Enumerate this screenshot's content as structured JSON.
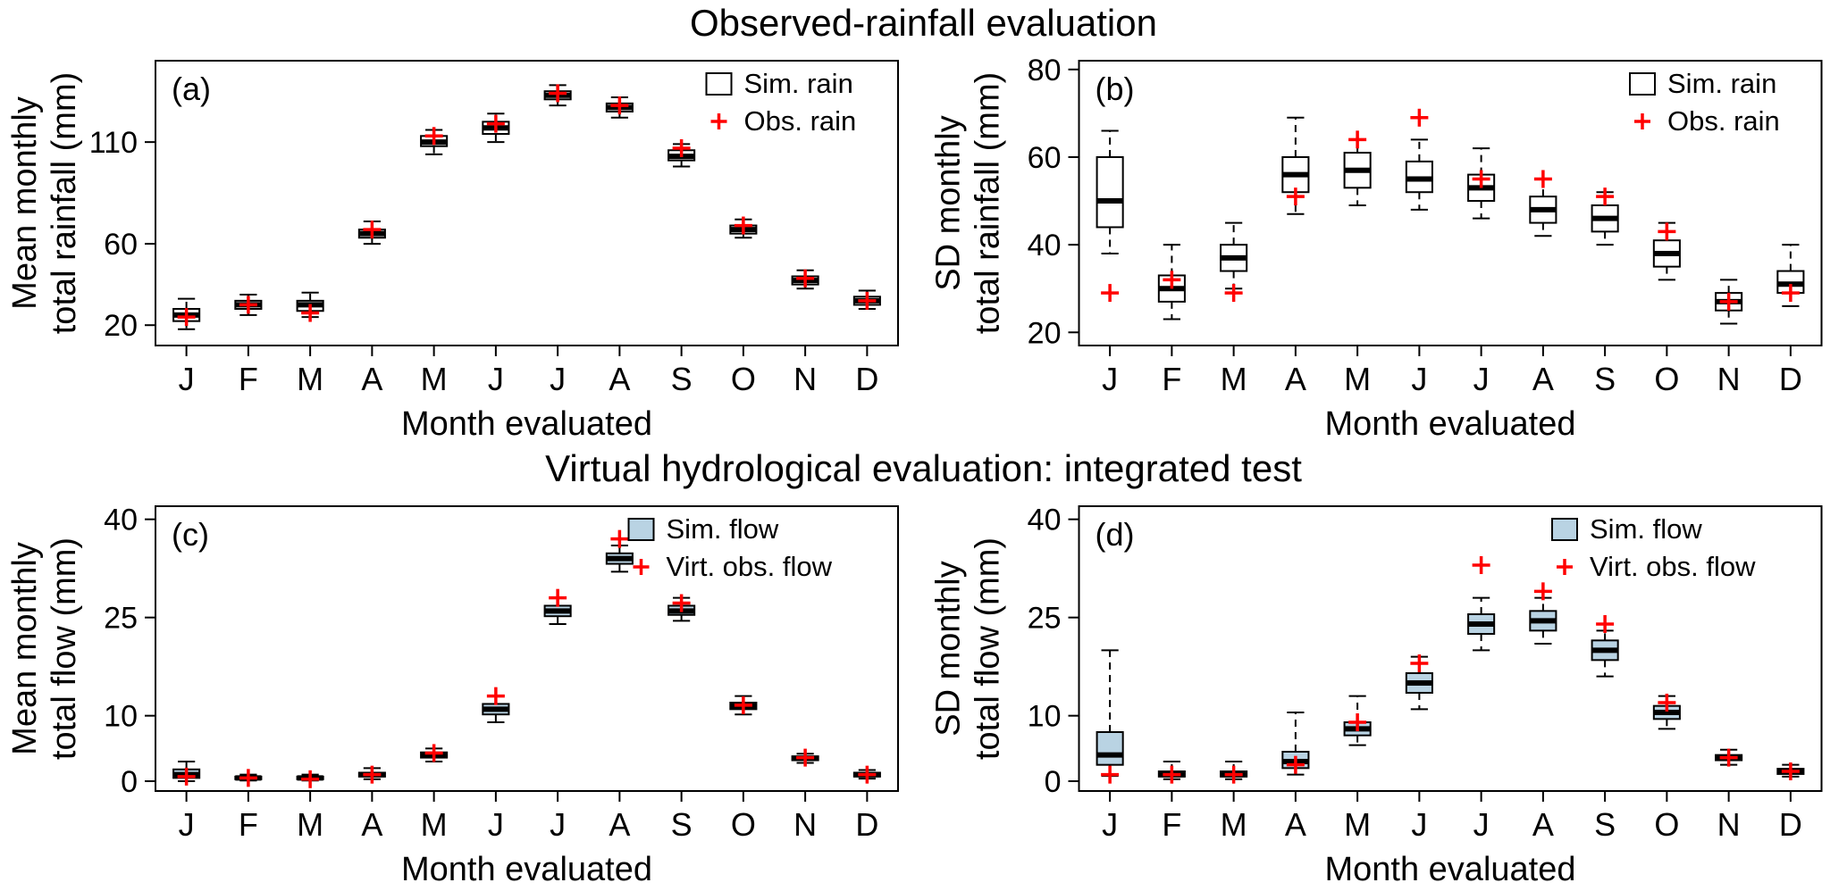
{
  "figure": {
    "top_title": "Observed-rainfall evaluation",
    "bottom_title": "Virtual hydrological evaluation: integrated test"
  },
  "colors": {
    "axis": "#000000",
    "obs_marker": "#ff0000",
    "rain_box_fill": "#ffffff",
    "flow_box_fill": "#b9d3e3"
  },
  "months": [
    "J",
    "F",
    "M",
    "A",
    "M",
    "J",
    "J",
    "A",
    "S",
    "O",
    "N",
    "D"
  ],
  "box_value_order": [
    "low_whisker",
    "q1",
    "median",
    "q3",
    "high_whisker"
  ],
  "chart_data": [
    {
      "id": "a",
      "type": "boxplot",
      "panel_label": "(a)",
      "ylabel_lines": [
        "Mean monthly",
        "total rainfall (mm)"
      ],
      "xlabel": "Month evaluated",
      "yticks": [
        20,
        60,
        110
      ],
      "ylim": [
        10,
        150
      ],
      "box_fill": "#ffffff",
      "categories": [
        "J",
        "F",
        "M",
        "A",
        "M",
        "J",
        "J",
        "A",
        "S",
        "O",
        "N",
        "D"
      ],
      "legend": [
        {
          "glyph": "box",
          "label": "Sim. rain"
        },
        {
          "glyph": "plus",
          "label": "Obs. rain"
        }
      ],
      "series": [
        {
          "name": "Sim. rain",
          "type": "box",
          "values": [
            [
              18,
              22,
              25,
              28,
              33
            ],
            [
              25,
              28,
              30,
              32,
              35
            ],
            [
              24,
              27,
              30,
              32,
              36
            ],
            [
              60,
              63,
              65,
              67,
              71
            ],
            [
              104,
              108,
              110,
              113,
              116
            ],
            [
              110,
              114,
              117,
              120,
              124
            ],
            [
              128,
              131,
              133,
              135,
              138
            ],
            [
              122,
              125,
              127,
              129,
              132
            ],
            [
              98,
              101,
              103,
              106,
              109
            ],
            [
              63,
              65,
              67,
              69,
              72
            ],
            [
              38,
              40,
              42,
              44,
              47
            ],
            [
              28,
              30,
              32,
              34,
              37
            ]
          ]
        },
        {
          "name": "Obs. rain",
          "type": "plus",
          "values": [
            24,
            30,
            26,
            67,
            113,
            119,
            134,
            128,
            107,
            69,
            43,
            32
          ]
        }
      ]
    },
    {
      "id": "b",
      "type": "boxplot",
      "panel_label": "(b)",
      "ylabel_lines": [
        "SD monthly",
        "total rainfall (mm)"
      ],
      "xlabel": "Month evaluated",
      "yticks": [
        20,
        40,
        60,
        80
      ],
      "ylim": [
        17,
        82
      ],
      "box_fill": "#ffffff",
      "categories": [
        "J",
        "F",
        "M",
        "A",
        "M",
        "J",
        "J",
        "A",
        "S",
        "O",
        "N",
        "D"
      ],
      "legend": [
        {
          "glyph": "box",
          "label": "Sim. rain"
        },
        {
          "glyph": "plus",
          "label": "Obs. rain"
        }
      ],
      "series": [
        {
          "name": "Sim. rain",
          "type": "box",
          "values": [
            [
              38,
              44,
              50,
              60,
              66
            ],
            [
              23,
              27,
              30,
              33,
              40
            ],
            [
              30,
              34,
              37,
              40,
              45
            ],
            [
              47,
              52,
              56,
              60,
              69
            ],
            [
              49,
              53,
              57,
              61,
              64
            ],
            [
              48,
              52,
              55,
              59,
              64
            ],
            [
              46,
              50,
              53,
              56,
              62
            ],
            [
              42,
              45,
              48,
              51,
              55
            ],
            [
              40,
              43,
              46,
              49,
              52
            ],
            [
              32,
              35,
              38,
              41,
              45
            ],
            [
              22,
              25,
              27,
              29,
              32
            ],
            [
              26,
              29,
              31,
              34,
              40
            ]
          ]
        },
        {
          "name": "Obs. rain",
          "type": "plus",
          "values": [
            29,
            32,
            29,
            51,
            64,
            69,
            55,
            55,
            51,
            43,
            27,
            29
          ]
        }
      ]
    },
    {
      "id": "c",
      "type": "boxplot",
      "panel_label": "(c)",
      "ylabel_lines": [
        "Mean monthly",
        "total flow (mm)"
      ],
      "xlabel": "Month evaluated",
      "yticks": [
        0,
        10,
        25,
        40
      ],
      "ylim": [
        -1.5,
        42
      ],
      "box_fill": "#b9d3e3",
      "categories": [
        "J",
        "F",
        "M",
        "A",
        "M",
        "J",
        "J",
        "A",
        "S",
        "O",
        "N",
        "D"
      ],
      "legend": [
        {
          "glyph": "box",
          "label": "Sim. flow"
        },
        {
          "glyph": "plus",
          "label": "Virt. obs. flow"
        }
      ],
      "series": [
        {
          "name": "Sim. flow",
          "type": "box",
          "values": [
            [
              0,
              0.5,
              1,
              1.8,
              3
            ],
            [
              0.1,
              0.3,
              0.5,
              0.7,
              1
            ],
            [
              0.1,
              0.3,
              0.5,
              0.7,
              1
            ],
            [
              0.3,
              0.7,
              1,
              1.3,
              2
            ],
            [
              3,
              3.6,
              4,
              4.4,
              5
            ],
            [
              9,
              10.2,
              11,
              11.8,
              13
            ],
            [
              24,
              25.2,
              26,
              26.8,
              28
            ],
            [
              32,
              33.2,
              34,
              34.8,
              36
            ],
            [
              24.5,
              25.4,
              26,
              26.8,
              28
            ],
            [
              10.2,
              11,
              11.5,
              12,
              13
            ],
            [
              2.8,
              3.2,
              3.5,
              3.8,
              4.2
            ],
            [
              0.4,
              0.7,
              1,
              1.3,
              1.7
            ]
          ]
        },
        {
          "name": "Virt. obs. flow",
          "type": "plus",
          "values": [
            0.7,
            0.5,
            0.3,
            1,
            4.3,
            13,
            28,
            37,
            27.2,
            11.6,
            3.6,
            1
          ]
        }
      ]
    },
    {
      "id": "d",
      "type": "boxplot",
      "panel_label": "(d)",
      "ylabel_lines": [
        "SD monthly",
        "total flow (mm)"
      ],
      "xlabel": "Month evaluated",
      "yticks": [
        0,
        10,
        25,
        40
      ],
      "ylim": [
        -1.5,
        42
      ],
      "box_fill": "#b9d3e3",
      "categories": [
        "J",
        "F",
        "M",
        "A",
        "M",
        "J",
        "J",
        "A",
        "S",
        "O",
        "N",
        "D"
      ],
      "legend": [
        {
          "glyph": "box",
          "label": "Sim. flow"
        },
        {
          "glyph": "plus",
          "label": "Virt. obs. flow"
        }
      ],
      "series": [
        {
          "name": "Sim. flow",
          "type": "box",
          "values": [
            [
              0.8,
              2.5,
              4,
              7.5,
              20
            ],
            [
              0.3,
              0.7,
              1,
              1.5,
              3
            ],
            [
              0.3,
              0.7,
              1,
              1.5,
              3
            ],
            [
              1,
              2,
              3,
              4.5,
              10.5
            ],
            [
              5.5,
              7,
              8,
              9,
              13
            ],
            [
              11,
              13.5,
              15,
              16.5,
              19
            ],
            [
              20,
              22.5,
              24,
              25.5,
              28
            ],
            [
              21,
              23,
              24.5,
              26,
              28
            ],
            [
              16,
              18.5,
              20,
              21.5,
              23
            ],
            [
              8,
              9.5,
              10.5,
              11.5,
              13
            ],
            [
              2.5,
              3.2,
              3.5,
              4,
              4.8
            ],
            [
              0.7,
              1.1,
              1.5,
              1.9,
              2.5
            ]
          ]
        },
        {
          "name": "Virt. obs. flow",
          "type": "plus",
          "values": [
            1,
            1,
            1,
            2.5,
            9,
            18,
            33,
            29,
            24,
            12,
            3.6,
            1.5
          ]
        }
      ]
    }
  ]
}
